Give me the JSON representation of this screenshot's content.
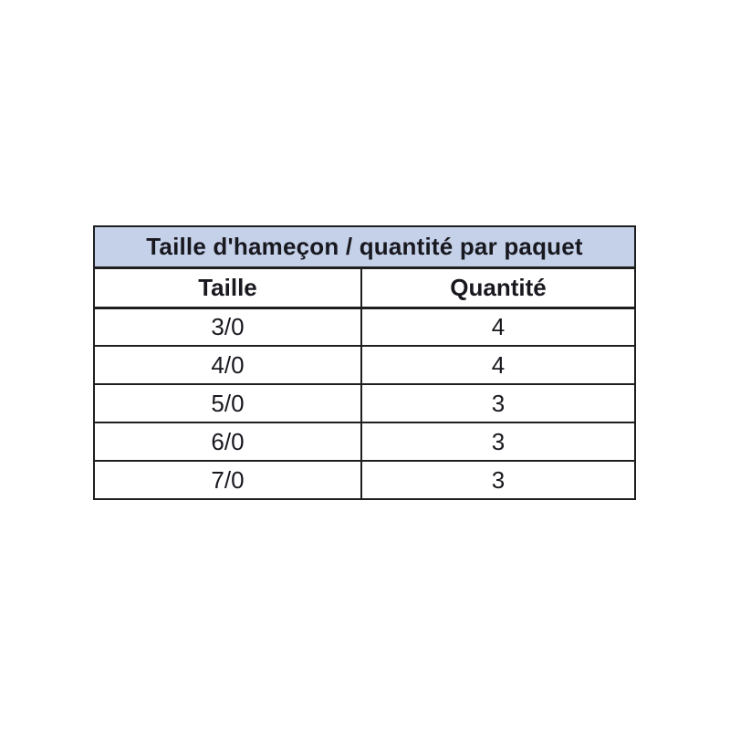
{
  "colors": {
    "title_bg": "#c5d1e9",
    "border": "#1f1f1f",
    "text": "#18181f",
    "page_bg": "#ffffff"
  },
  "table": {
    "title": "Taille d'hameçon / quantité par paquet",
    "columns": [
      "Taille",
      "Quantité"
    ],
    "rows": [
      [
        "3/0",
        "4"
      ],
      [
        "4/0",
        "4"
      ],
      [
        "5/0",
        "3"
      ],
      [
        "6/0",
        "3"
      ],
      [
        "7/0",
        "3"
      ]
    ]
  },
  "chart_data": {
    "type": "table",
    "title": "Taille d'hameçon / quantité par paquet",
    "columns": [
      "Taille",
      "Quantité"
    ],
    "rows": [
      [
        "3/0",
        4
      ],
      [
        "4/0",
        4
      ],
      [
        "5/0",
        3
      ],
      [
        "6/0",
        3
      ],
      [
        "7/0",
        3
      ]
    ],
    "notes": "Hook size vs quantity per pack; title row shaded light blue; all cells center-aligned"
  }
}
